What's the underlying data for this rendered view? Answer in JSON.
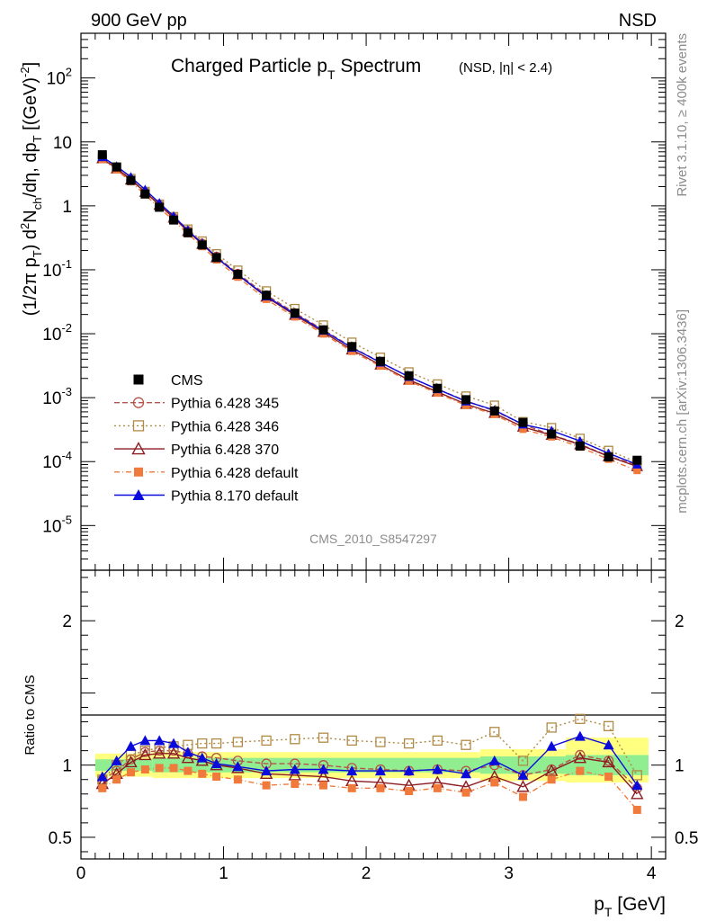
{
  "header": {
    "left": "900 GeV pp",
    "right": "NSD"
  },
  "side_text": {
    "rivet": "Rivet 3.1.10, ≥ 400k events",
    "mcplots": "mcplots.cern.ch [arXiv:1306.3436]"
  },
  "analysis_id": "CMS_2010_S8547297",
  "chart_data": [
    {
      "type": "line",
      "yscale": "log",
      "title_main": "Charged Particle p",
      "title_sub": "T",
      "title_tail": " Spectrum",
      "title_note": "(NSD, |η| < 2.4)",
      "ylabel": "(1/2π p_T) d²N_ch/dη, dp_T [(GeV)^-2]",
      "xlim": [
        0,
        4.1
      ],
      "ylim": [
        2e-06,
        500
      ],
      "y_tick_labels": [
        "10^2",
        "10",
        "1",
        "10^-1",
        "10^-2",
        "10^-3",
        "10^-4",
        "10^-5"
      ],
      "x": [
        0.15,
        0.25,
        0.35,
        0.45,
        0.55,
        0.65,
        0.75,
        0.85,
        0.95,
        1.1,
        1.3,
        1.5,
        1.7,
        1.9,
        2.1,
        2.3,
        2.5,
        2.7,
        2.9,
        3.1,
        3.3,
        3.5,
        3.7,
        3.9
      ],
      "series": [
        {
          "name": "CMS",
          "values": [
            6.3,
            4.05,
            2.5,
            1.53,
            0.95,
            0.6,
            0.38,
            0.245,
            0.155,
            0.085,
            0.04,
            0.021,
            0.0115,
            0.0063,
            0.0037,
            0.0022,
            0.0014,
            0.00093,
            0.00062,
            0.00041,
            0.00027,
            0.000175,
            0.000118,
            0.000105
          ]
        },
        {
          "name": "Pythia 6.428 345"
        },
        {
          "name": "Pythia 6.428 346"
        },
        {
          "name": "Pythia 6.428 370"
        },
        {
          "name": "Pythia 6.428 default"
        },
        {
          "name": "Pythia 8.170 default"
        }
      ]
    },
    {
      "type": "line",
      "ylabel": "Ratio to CMS",
      "xlabel": "p_T [GeV]",
      "xlim": [
        0,
        4.1
      ],
      "ylim": [
        0.35,
        2.35
      ],
      "x_tick_labels": [
        "0",
        "1",
        "2",
        "3",
        "4"
      ],
      "y_tick_labels": [
        "0.5",
        "1",
        "2"
      ],
      "x": [
        0.15,
        0.25,
        0.35,
        0.45,
        0.55,
        0.65,
        0.75,
        0.85,
        0.95,
        1.1,
        1.3,
        1.5,
        1.7,
        1.9,
        2.1,
        2.3,
        2.5,
        2.7,
        2.9,
        3.1,
        3.3,
        3.5,
        3.7,
        3.9
      ],
      "bands": {
        "stat": [
          [
            0.1,
            0.5,
            0.96,
            1.04
          ],
          [
            0.5,
            2.8,
            0.95,
            1.05
          ],
          [
            2.8,
            3.4,
            0.94,
            1.06
          ],
          [
            3.4,
            3.98,
            0.93,
            1.07
          ]
        ],
        "total": [
          [
            0.1,
            0.5,
            0.92,
            1.08
          ],
          [
            0.5,
            2.8,
            0.91,
            1.09
          ],
          [
            2.8,
            3.4,
            0.89,
            1.11
          ],
          [
            3.4,
            3.98,
            0.88,
            1.19
          ]
        ]
      },
      "series": [
        {
          "name": "Pythia 6.428 345",
          "color": "#b5524a",
          "marker": "open-circle",
          "dash": "6,3",
          "values": [
            0.9,
            0.96,
            1.04,
            1.09,
            1.1,
            1.1,
            1.08,
            1.06,
            1.05,
            1.03,
            1.01,
            1.01,
            1.0,
            0.98,
            0.97,
            0.96,
            0.97,
            0.96,
            1.0,
            0.93,
            0.97,
            1.07,
            1.03,
            0.84
          ]
        },
        {
          "name": "Pythia 6.428 346",
          "color": "#b08a45",
          "marker": "open-square",
          "dash": "2,3",
          "values": [
            0.9,
            1.0,
            1.07,
            1.1,
            1.12,
            1.13,
            1.14,
            1.15,
            1.15,
            1.16,
            1.17,
            1.18,
            1.19,
            1.17,
            1.16,
            1.15,
            1.17,
            1.14,
            1.23,
            1.03,
            1.26,
            1.32,
            1.27,
            0.93
          ]
        },
        {
          "name": "Pythia 6.428 370",
          "color": "#8b1c22",
          "marker": "open-triangle",
          "dash": "",
          "values": [
            0.87,
            0.94,
            1.02,
            1.07,
            1.08,
            1.08,
            1.05,
            1.03,
            1.0,
            0.98,
            0.94,
            0.93,
            0.92,
            0.89,
            0.88,
            0.86,
            0.88,
            0.85,
            0.92,
            0.85,
            0.96,
            1.05,
            1.02,
            0.8
          ]
        },
        {
          "name": "Pythia 6.428 default",
          "color": "#f07a3c",
          "marker": "filled-square",
          "dash": "6,3,1,3",
          "values": [
            0.84,
            0.9,
            0.95,
            0.97,
            0.98,
            0.98,
            0.96,
            0.94,
            0.92,
            0.9,
            0.86,
            0.87,
            0.86,
            0.84,
            0.84,
            0.82,
            0.84,
            0.81,
            0.88,
            0.78,
            0.9,
            0.96,
            0.92,
            0.69
          ]
        },
        {
          "name": "Pythia 8.170 default",
          "color": "#0a0adc",
          "marker": "filled-triangle",
          "dash": "",
          "values": [
            0.92,
            1.03,
            1.13,
            1.17,
            1.17,
            1.15,
            1.09,
            1.05,
            1.01,
            0.99,
            0.96,
            0.97,
            0.97,
            0.96,
            0.96,
            0.96,
            0.97,
            0.94,
            1.03,
            0.93,
            1.13,
            1.2,
            1.14,
            0.86
          ]
        }
      ]
    }
  ]
}
